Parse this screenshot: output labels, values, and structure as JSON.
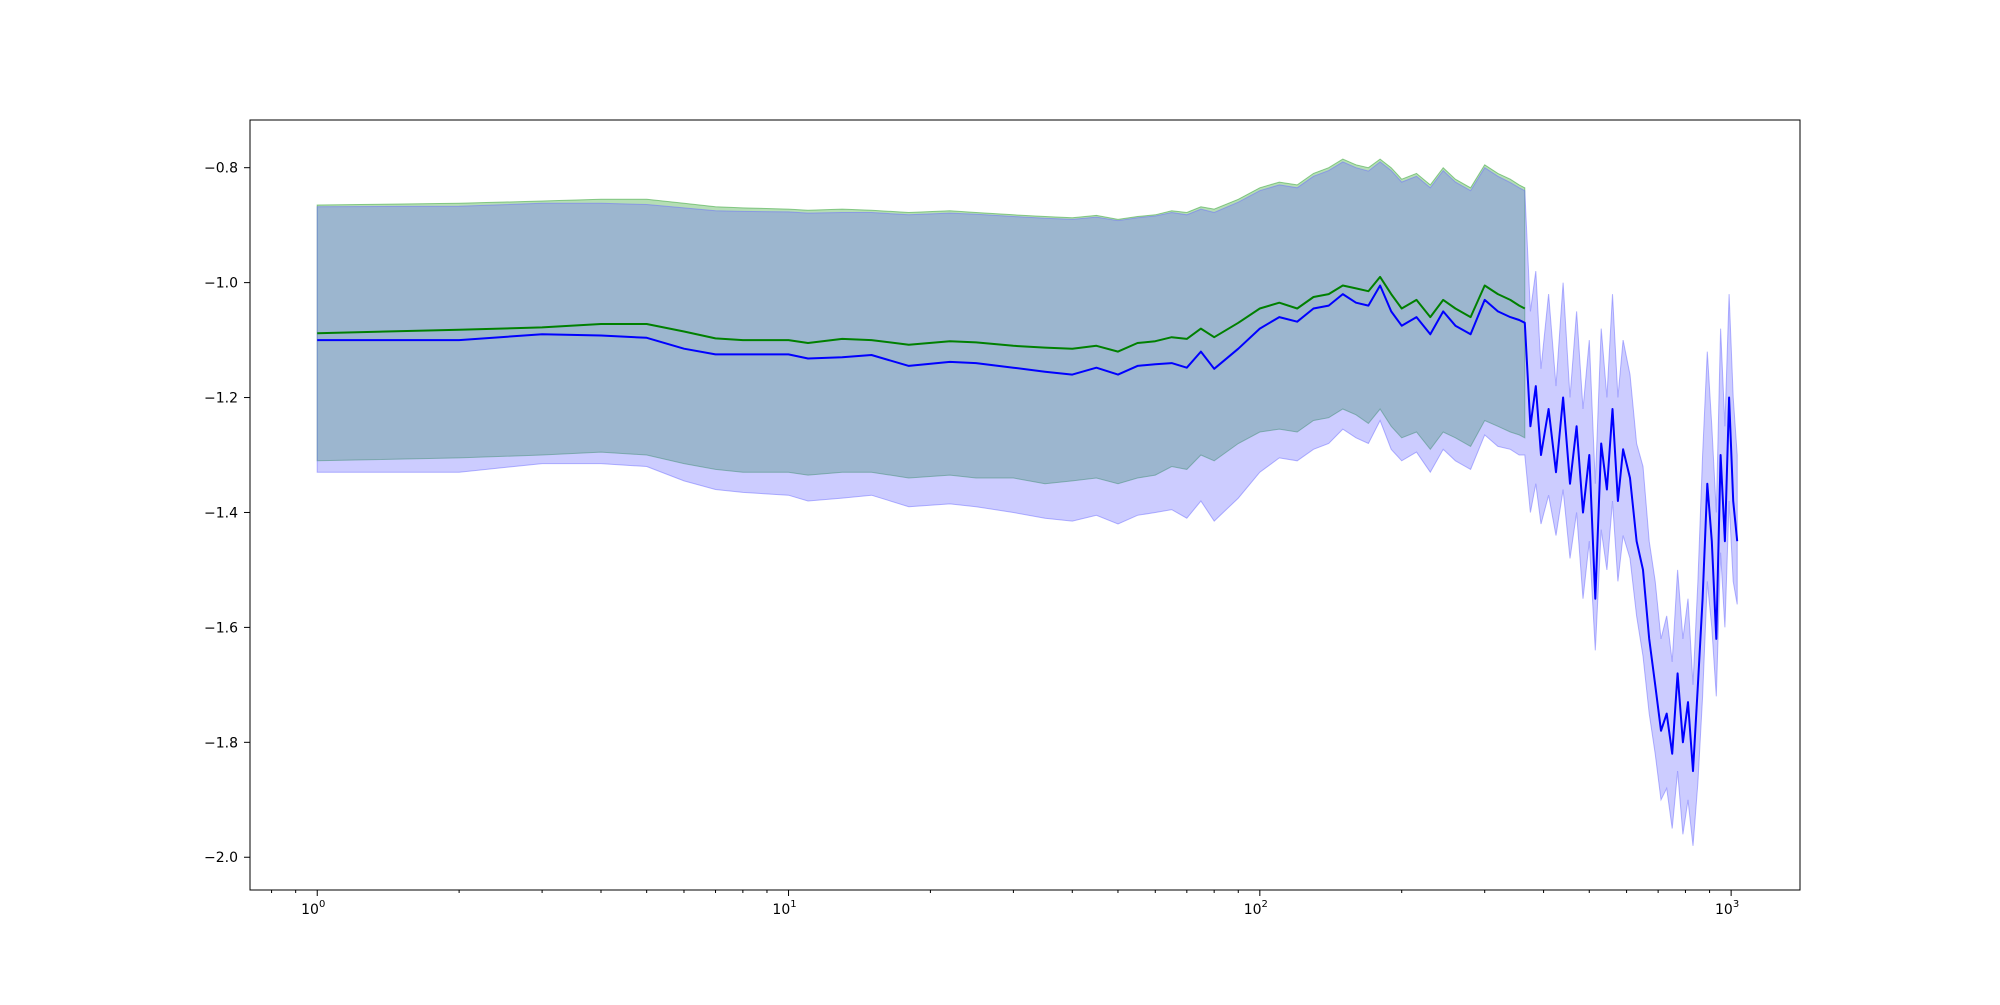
{
  "chart_data": {
    "type": "line",
    "title": "",
    "xlabel": "",
    "ylabel": "",
    "x_scale": "log",
    "xlim": [
      0.72,
      1400
    ],
    "ylim": [
      -2.057,
      -0.717
    ],
    "grid": false,
    "x_ticks": [
      {
        "value": 1,
        "base": "10",
        "exp": "0"
      },
      {
        "value": 10,
        "base": "10",
        "exp": "1"
      },
      {
        "value": 100,
        "base": "10",
        "exp": "2"
      },
      {
        "value": 1000,
        "base": "10",
        "exp": "3"
      }
    ],
    "y_ticks": [
      {
        "value": -0.8,
        "label": "−0.8"
      },
      {
        "value": -1.0,
        "label": "−1.0"
      },
      {
        "value": -1.2,
        "label": "−1.2"
      },
      {
        "value": -1.4,
        "label": "−1.4"
      },
      {
        "value": -1.6,
        "label": "−1.6"
      },
      {
        "value": -1.8,
        "label": "−1.8"
      },
      {
        "value": -2.0,
        "label": "−2.0"
      }
    ],
    "series": [
      {
        "color": "#008000",
        "band_color": "#2ca02c",
        "x": [
          1,
          2,
          3,
          4,
          5,
          6,
          7,
          8,
          10,
          11,
          13,
          15,
          18,
          22,
          25,
          30,
          35,
          40,
          45,
          50,
          55,
          60,
          65,
          70,
          75,
          80,
          90,
          100,
          110,
          120,
          130,
          140,
          150,
          160,
          170,
          180,
          190,
          200,
          215,
          230,
          245,
          260,
          280,
          300,
          320,
          340,
          355,
          365
        ],
        "y": [
          -1.088,
          -1.082,
          -1.078,
          -1.072,
          -1.072,
          -1.085,
          -1.097,
          -1.1,
          -1.1,
          -1.105,
          -1.098,
          -1.1,
          -1.108,
          -1.102,
          -1.104,
          -1.11,
          -1.113,
          -1.115,
          -1.11,
          -1.12,
          -1.105,
          -1.102,
          -1.095,
          -1.098,
          -1.08,
          -1.095,
          -1.07,
          -1.045,
          -1.035,
          -1.045,
          -1.025,
          -1.02,
          -1.005,
          -1.01,
          -1.015,
          -0.99,
          -1.02,
          -1.045,
          -1.03,
          -1.06,
          -1.03,
          -1.045,
          -1.06,
          -1.005,
          -1.02,
          -1.03,
          -1.04,
          -1.045
        ],
        "band_lower": [
          -1.31,
          -1.305,
          -1.3,
          -1.295,
          -1.3,
          -1.315,
          -1.325,
          -1.33,
          -1.33,
          -1.335,
          -1.33,
          -1.33,
          -1.34,
          -1.335,
          -1.34,
          -1.34,
          -1.35,
          -1.345,
          -1.34,
          -1.35,
          -1.34,
          -1.335,
          -1.32,
          -1.325,
          -1.3,
          -1.31,
          -1.28,
          -1.26,
          -1.255,
          -1.26,
          -1.24,
          -1.235,
          -1.22,
          -1.23,
          -1.245,
          -1.22,
          -1.25,
          -1.27,
          -1.26,
          -1.29,
          -1.26,
          -1.27,
          -1.285,
          -1.24,
          -1.25,
          -1.26,
          -1.265,
          -1.27
        ],
        "band_upper": [
          -0.865,
          -0.862,
          -0.858,
          -0.855,
          -0.855,
          -0.862,
          -0.868,
          -0.87,
          -0.872,
          -0.874,
          -0.872,
          -0.874,
          -0.878,
          -0.875,
          -0.878,
          -0.882,
          -0.885,
          -0.887,
          -0.883,
          -0.89,
          -0.885,
          -0.882,
          -0.875,
          -0.878,
          -0.868,
          -0.872,
          -0.855,
          -0.835,
          -0.825,
          -0.83,
          -0.81,
          -0.8,
          -0.785,
          -0.795,
          -0.8,
          -0.785,
          -0.8,
          -0.82,
          -0.81,
          -0.83,
          -0.8,
          -0.82,
          -0.835,
          -0.795,
          -0.81,
          -0.82,
          -0.83,
          -0.835
        ]
      },
      {
        "color": "#0000ff",
        "band_color": "#6c6cff",
        "x": [
          1,
          2,
          3,
          4,
          5,
          6,
          7,
          8,
          10,
          11,
          13,
          15,
          18,
          22,
          25,
          30,
          35,
          40,
          45,
          50,
          55,
          60,
          65,
          70,
          75,
          80,
          90,
          100,
          110,
          120,
          130,
          140,
          150,
          160,
          170,
          180,
          190,
          200,
          215,
          230,
          245,
          260,
          280,
          300,
          320,
          340,
          355,
          365,
          375,
          385,
          395,
          410,
          425,
          440,
          455,
          470,
          485,
          500,
          515,
          530,
          545,
          560,
          575,
          590,
          610,
          630,
          650,
          670,
          690,
          710,
          730,
          750,
          770,
          790,
          810,
          830,
          850,
          870,
          890,
          910,
          930,
          950,
          970,
          990,
          1010,
          1030
        ],
        "y": [
          -1.1,
          -1.1,
          -1.09,
          -1.092,
          -1.096,
          -1.115,
          -1.125,
          -1.125,
          -1.125,
          -1.132,
          -1.13,
          -1.126,
          -1.145,
          -1.138,
          -1.14,
          -1.148,
          -1.155,
          -1.16,
          -1.148,
          -1.16,
          -1.145,
          -1.142,
          -1.14,
          -1.148,
          -1.12,
          -1.15,
          -1.115,
          -1.08,
          -1.06,
          -1.068,
          -1.045,
          -1.04,
          -1.02,
          -1.035,
          -1.04,
          -1.005,
          -1.05,
          -1.075,
          -1.06,
          -1.09,
          -1.05,
          -1.075,
          -1.09,
          -1.03,
          -1.05,
          -1.06,
          -1.065,
          -1.07,
          -1.25,
          -1.18,
          -1.3,
          -1.22,
          -1.33,
          -1.2,
          -1.35,
          -1.25,
          -1.4,
          -1.3,
          -1.55,
          -1.28,
          -1.36,
          -1.22,
          -1.38,
          -1.29,
          -1.34,
          -1.45,
          -1.5,
          -1.62,
          -1.7,
          -1.78,
          -1.75,
          -1.82,
          -1.68,
          -1.8,
          -1.73,
          -1.85,
          -1.7,
          -1.55,
          -1.35,
          -1.45,
          -1.62,
          -1.3,
          -1.45,
          -1.2,
          -1.38,
          -1.45
        ],
        "band_lower": [
          -1.33,
          -1.33,
          -1.315,
          -1.315,
          -1.32,
          -1.345,
          -1.36,
          -1.365,
          -1.37,
          -1.38,
          -1.375,
          -1.37,
          -1.39,
          -1.385,
          -1.39,
          -1.4,
          -1.41,
          -1.415,
          -1.405,
          -1.42,
          -1.405,
          -1.4,
          -1.395,
          -1.41,
          -1.38,
          -1.415,
          -1.375,
          -1.33,
          -1.305,
          -1.31,
          -1.29,
          -1.28,
          -1.255,
          -1.27,
          -1.28,
          -1.24,
          -1.29,
          -1.31,
          -1.295,
          -1.33,
          -1.29,
          -1.31,
          -1.325,
          -1.265,
          -1.285,
          -1.29,
          -1.3,
          -1.3,
          -1.4,
          -1.35,
          -1.42,
          -1.37,
          -1.44,
          -1.36,
          -1.48,
          -1.4,
          -1.55,
          -1.45,
          -1.64,
          -1.43,
          -1.5,
          -1.38,
          -1.52,
          -1.44,
          -1.48,
          -1.58,
          -1.65,
          -1.75,
          -1.82,
          -1.9,
          -1.88,
          -1.95,
          -1.85,
          -1.96,
          -1.9,
          -1.98,
          -1.87,
          -1.72,
          -1.52,
          -1.6,
          -1.72,
          -1.47,
          -1.6,
          -1.38,
          -1.52,
          -1.56
        ],
        "band_upper": [
          -0.868,
          -0.867,
          -0.862,
          -0.862,
          -0.864,
          -0.87,
          -0.875,
          -0.876,
          -0.877,
          -0.879,
          -0.878,
          -0.878,
          -0.882,
          -0.879,
          -0.881,
          -0.885,
          -0.888,
          -0.89,
          -0.886,
          -0.892,
          -0.887,
          -0.884,
          -0.878,
          -0.882,
          -0.872,
          -0.878,
          -0.86,
          -0.84,
          -0.83,
          -0.835,
          -0.815,
          -0.805,
          -0.79,
          -0.8,
          -0.806,
          -0.79,
          -0.805,
          -0.825,
          -0.815,
          -0.835,
          -0.805,
          -0.825,
          -0.84,
          -0.8,
          -0.815,
          -0.826,
          -0.835,
          -0.84,
          -1.05,
          -0.98,
          -1.15,
          -1.02,
          -1.18,
          -1.0,
          -1.2,
          -1.05,
          -1.22,
          -1.1,
          -1.35,
          -1.08,
          -1.2,
          -1.02,
          -1.2,
          -1.1,
          -1.16,
          -1.28,
          -1.32,
          -1.45,
          -1.52,
          -1.62,
          -1.58,
          -1.66,
          -1.5,
          -1.62,
          -1.55,
          -1.7,
          -1.52,
          -1.3,
          -1.12,
          -1.25,
          -1.4,
          -1.08,
          -1.25,
          -1.02,
          -1.2,
          -1.3
        ]
      }
    ]
  }
}
